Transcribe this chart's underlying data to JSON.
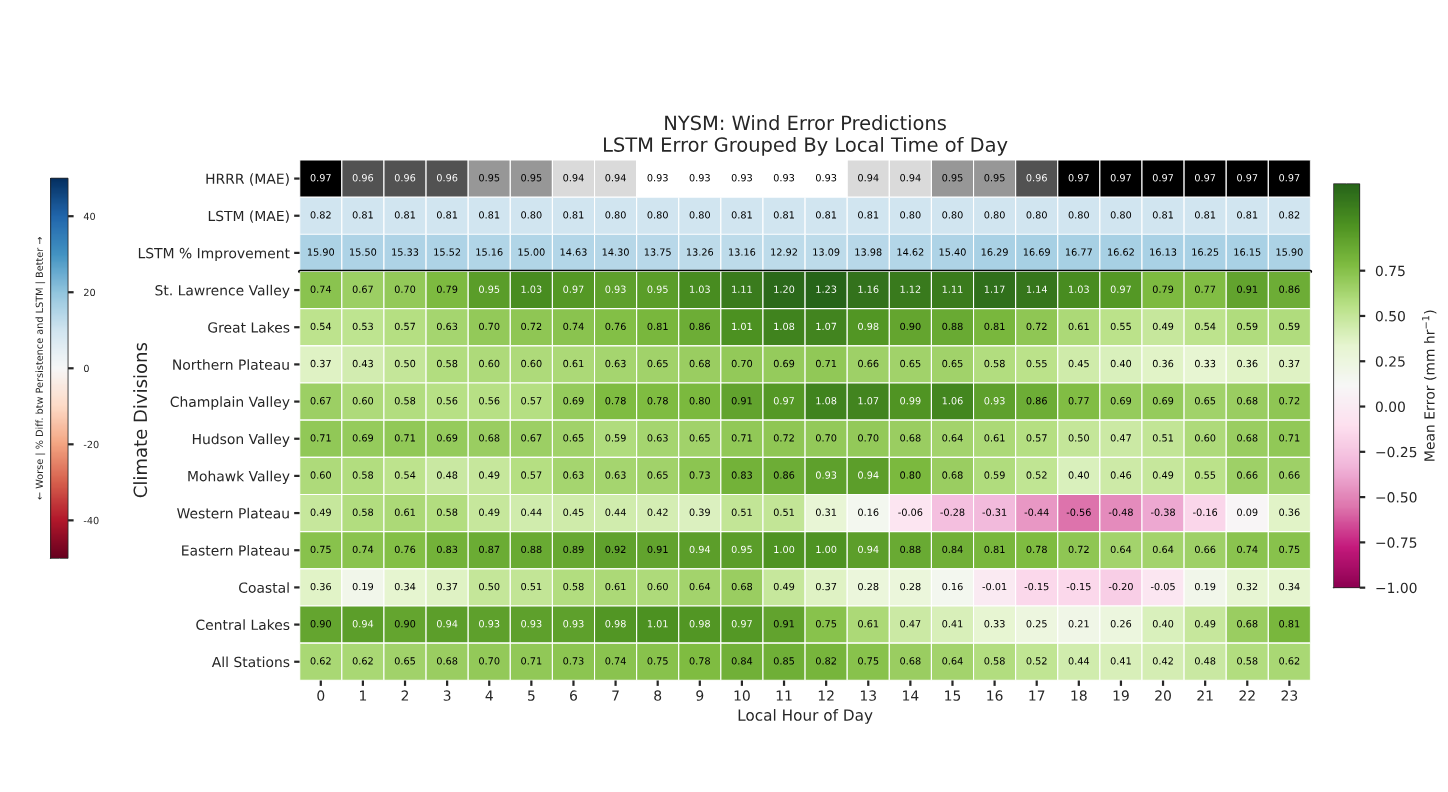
{
  "chart_data": [
    {
      "type": "heatmap",
      "title": "NYSM: Wind Error Predictions\nLSTM Error Grouped By Local Time of Day",
      "categories": [
        "0",
        "1",
        "2",
        "3",
        "4",
        "5",
        "6",
        "7",
        "8",
        "9",
        "10",
        "11",
        "12",
        "13",
        "14",
        "15",
        "16",
        "17",
        "18",
        "19",
        "20",
        "21",
        "22",
        "23"
      ],
      "y_categories": [
        "HRRR (MAE)"
      ],
      "cells": [
        [
          0.97,
          0.96,
          0.96,
          0.96,
          0.95,
          0.95,
          0.94,
          0.94,
          0.93,
          0.93,
          0.93,
          0.93,
          0.93,
          0.94,
          0.94,
          0.95,
          0.95,
          0.96,
          0.97,
          0.97,
          0.97,
          0.97,
          0.97,
          0.97
        ]
      ],
      "cell_labels": [
        [
          "0.97",
          "0.96",
          "0.96",
          "0.96",
          "0.95",
          "0.95",
          "0.94",
          "0.94",
          "0.93",
          "0.93",
          "0.93",
          "0.93",
          "0.93",
          "0.94",
          "0.94",
          "0.95",
          "0.95",
          "0.96",
          "0.97",
          "0.97",
          "0.97",
          "0.97",
          "0.97",
          "0.97"
        ]
      ],
      "tick_labels": "y"
    },
    {
      "type": "heatmap",
      "color": "#d1e5f0",
      "categories": [
        "0",
        "1",
        "2",
        "3",
        "4",
        "5",
        "6",
        "7",
        "8",
        "9",
        "10",
        "11",
        "12",
        "13",
        "14",
        "15",
        "16",
        "17",
        "18",
        "19",
        "20",
        "21",
        "22",
        "23"
      ],
      "y_categories": [
        "LSTM (MAE)"
      ],
      "cells": [
        [
          0.82,
          0.81,
          0.81,
          0.81,
          0.81,
          0.8,
          0.81,
          0.8,
          0.8,
          0.8,
          0.81,
          0.81,
          0.81,
          0.81,
          0.8,
          0.8,
          0.8,
          0.8,
          0.8,
          0.8,
          0.81,
          0.81,
          0.81,
          0.82
        ]
      ],
      "cell_labels": [
        [
          "0.82",
          "0.81",
          "0.81",
          "0.81",
          "0.81",
          "0.80",
          "0.81",
          "0.80",
          "0.80",
          "0.80",
          "0.81",
          "0.81",
          "0.81",
          "0.81",
          "0.80",
          "0.80",
          "0.80",
          "0.80",
          "0.80",
          "0.80",
          "0.81",
          "0.81",
          "0.81",
          "0.82"
        ]
      ],
      "tick_labels": "y"
    },
    {
      "type": "heatmap",
      "categories": [
        "0",
        "1",
        "2",
        "3",
        "4",
        "5",
        "6",
        "7",
        "8",
        "9",
        "10",
        "11",
        "12",
        "13",
        "14",
        "15",
        "16",
        "17",
        "18",
        "19",
        "20",
        "21",
        "22",
        "23"
      ],
      "y_categories": [
        "LSTM % Improvement"
      ],
      "cells": [
        [
          15.9,
          15.5,
          15.33,
          15.52,
          15.16,
          15.0,
          14.63,
          14.3,
          13.75,
          13.26,
          13.16,
          12.92,
          13.09,
          13.98,
          14.62,
          15.4,
          16.29,
          16.69,
          16.77,
          16.62,
          16.13,
          16.25,
          16.15,
          15.9
        ]
      ],
      "cell_labels": [
        [
          "15.90",
          "15.50",
          "15.33",
          "15.52",
          "15.16",
          "15.00",
          "14.63",
          "14.30",
          "13.75",
          "13.26",
          "13.16",
          "12.92",
          "13.09",
          "13.98",
          "14.62",
          "15.40",
          "16.29",
          "16.69",
          "16.77",
          "16.62",
          "16.13",
          "16.25",
          "16.15",
          "15.90"
        ]
      ],
      "clim": [
        -50,
        50
      ],
      "cticks": [
        -40,
        -20,
        0,
        20,
        40
      ],
      "clabel": "← Worse | % Diff. btw Persistence and LSTM | Better →",
      "tick_labels": "y"
    },
    {
      "type": "heatmap",
      "xlabel": "Local Hour of Day",
      "ylabel": "Climate Divisions",
      "categories": [
        "0",
        "1",
        "2",
        "3",
        "4",
        "5",
        "6",
        "7",
        "8",
        "9",
        "10",
        "11",
        "12",
        "13",
        "14",
        "15",
        "16",
        "17",
        "18",
        "19",
        "20",
        "21",
        "22",
        "23"
      ],
      "y_categories": [
        "St. Lawrence Valley",
        "Great Lakes",
        "Northern Plateau",
        "Champlain Valley",
        "Hudson Valley",
        "Mohawk Valley",
        "Western Plateau",
        "Eastern Plateau",
        "Coastal",
        "Central Lakes",
        "All Stations"
      ],
      "cells": [
        [
          0.74,
          0.67,
          0.7,
          0.79,
          0.95,
          1.03,
          0.97,
          0.93,
          0.95,
          1.03,
          1.11,
          1.2,
          1.23,
          1.16,
          1.12,
          1.11,
          1.17,
          1.14,
          1.03,
          0.97,
          0.79,
          0.77,
          0.91,
          0.86
        ],
        [
          0.54,
          0.53,
          0.57,
          0.63,
          0.7,
          0.72,
          0.74,
          0.76,
          0.81,
          0.86,
          1.01,
          1.08,
          1.07,
          0.98,
          0.9,
          0.88,
          0.81,
          0.72,
          0.61,
          0.55,
          0.49,
          0.54,
          0.59,
          0.59
        ],
        [
          0.37,
          0.43,
          0.5,
          0.58,
          0.6,
          0.6,
          0.61,
          0.63,
          0.65,
          0.68,
          0.7,
          0.69,
          0.71,
          0.66,
          0.65,
          0.65,
          0.58,
          0.55,
          0.45,
          0.4,
          0.36,
          0.33,
          0.36,
          0.37
        ],
        [
          0.67,
          0.6,
          0.58,
          0.56,
          0.56,
          0.57,
          0.69,
          0.78,
          0.78,
          0.8,
          0.91,
          0.97,
          1.08,
          1.07,
          0.99,
          1.06,
          0.93,
          0.86,
          0.77,
          0.69,
          0.69,
          0.65,
          0.68,
          0.72
        ],
        [
          0.71,
          0.69,
          0.71,
          0.69,
          0.68,
          0.67,
          0.65,
          0.59,
          0.63,
          0.65,
          0.71,
          0.72,
          0.7,
          0.7,
          0.68,
          0.64,
          0.61,
          0.57,
          0.5,
          0.47,
          0.51,
          0.6,
          0.68,
          0.71
        ],
        [
          0.6,
          0.58,
          0.54,
          0.48,
          0.49,
          0.57,
          0.63,
          0.63,
          0.65,
          0.73,
          0.83,
          0.86,
          0.93,
          0.94,
          0.8,
          0.68,
          0.59,
          0.52,
          0.4,
          0.46,
          0.49,
          0.55,
          0.66,
          0.66
        ],
        [
          0.49,
          0.58,
          0.61,
          0.58,
          0.49,
          0.44,
          0.45,
          0.44,
          0.42,
          0.39,
          0.51,
          0.51,
          0.31,
          0.16,
          -0.06,
          -0.28,
          -0.31,
          -0.44,
          -0.56,
          -0.48,
          -0.38,
          -0.16,
          0.09,
          0.36
        ],
        [
          0.75,
          0.74,
          0.76,
          0.83,
          0.87,
          0.88,
          0.89,
          0.92,
          0.91,
          0.94,
          0.95,
          1.0,
          1.0,
          0.94,
          0.88,
          0.84,
          0.81,
          0.78,
          0.72,
          0.64,
          0.64,
          0.66,
          0.74,
          0.75
        ],
        [
          0.36,
          0.19,
          0.34,
          0.37,
          0.5,
          0.51,
          0.58,
          0.61,
          0.6,
          0.64,
          0.68,
          0.49,
          0.37,
          0.28,
          0.28,
          0.16,
          -0.01,
          -0.15,
          -0.15,
          -0.2,
          -0.05,
          0.19,
          0.32,
          0.34
        ],
        [
          0.9,
          0.94,
          0.9,
          0.94,
          0.93,
          0.93,
          0.93,
          0.98,
          1.01,
          0.98,
          0.97,
          0.91,
          0.75,
          0.61,
          0.47,
          0.41,
          0.33,
          0.25,
          0.21,
          0.26,
          0.4,
          0.49,
          0.68,
          0.81
        ],
        [
          0.62,
          0.62,
          0.65,
          0.68,
          0.7,
          0.71,
          0.73,
          0.74,
          0.75,
          0.78,
          0.84,
          0.85,
          0.82,
          0.75,
          0.68,
          0.64,
          0.58,
          0.52,
          0.44,
          0.41,
          0.42,
          0.48,
          0.58,
          0.62
        ]
      ],
      "cell_labels": [
        [
          "0.74",
          "0.67",
          "0.70",
          "0.79",
          "0.95",
          "1.03",
          "0.97",
          "0.93",
          "0.95",
          "1.03",
          "1.11",
          "1.20",
          "1.23",
          "1.16",
          "1.12",
          "1.11",
          "1.17",
          "1.14",
          "1.03",
          "0.97",
          "0.79",
          "0.77",
          "0.91",
          "0.86"
        ],
        [
          "0.54",
          "0.53",
          "0.57",
          "0.63",
          "0.70",
          "0.72",
          "0.74",
          "0.76",
          "0.81",
          "0.86",
          "1.01",
          "1.08",
          "1.07",
          "0.98",
          "0.90",
          "0.88",
          "0.81",
          "0.72",
          "0.61",
          "0.55",
          "0.49",
          "0.54",
          "0.59",
          "0.59"
        ],
        [
          "0.37",
          "0.43",
          "0.50",
          "0.58",
          "0.60",
          "0.60",
          "0.61",
          "0.63",
          "0.65",
          "0.68",
          "0.70",
          "0.69",
          "0.71",
          "0.66",
          "0.65",
          "0.65",
          "0.58",
          "0.55",
          "0.45",
          "0.40",
          "0.36",
          "0.33",
          "0.36",
          "0.37"
        ],
        [
          "0.67",
          "0.60",
          "0.58",
          "0.56",
          "0.56",
          "0.57",
          "0.69",
          "0.78",
          "0.78",
          "0.80",
          "0.91",
          "0.97",
          "1.08",
          "1.07",
          "0.99",
          "1.06",
          "0.93",
          "0.86",
          "0.77",
          "0.69",
          "0.69",
          "0.65",
          "0.68",
          "0.72"
        ],
        [
          "0.71",
          "0.69",
          "0.71",
          "0.69",
          "0.68",
          "0.67",
          "0.65",
          "0.59",
          "0.63",
          "0.65",
          "0.71",
          "0.72",
          "0.70",
          "0.70",
          "0.68",
          "0.64",
          "0.61",
          "0.57",
          "0.50",
          "0.47",
          "0.51",
          "0.60",
          "0.68",
          "0.71"
        ],
        [
          "0.60",
          "0.58",
          "0.54",
          "0.48",
          "0.49",
          "0.57",
          "0.63",
          "0.63",
          "0.65",
          "0.73",
          "0.83",
          "0.86",
          "0.93",
          "0.94",
          "0.80",
          "0.68",
          "0.59",
          "0.52",
          "0.40",
          "0.46",
          "0.49",
          "0.55",
          "0.66",
          "0.66"
        ],
        [
          "0.49",
          "0.58",
          "0.61",
          "0.58",
          "0.49",
          "0.44",
          "0.45",
          "0.44",
          "0.42",
          "0.39",
          "0.51",
          "0.51",
          "0.31",
          "0.16",
          "-0.06",
          "-0.28",
          "-0.31",
          "-0.44",
          "-0.56",
          "-0.48",
          "-0.38",
          "-0.16",
          "0.09",
          "0.36"
        ],
        [
          "0.75",
          "0.74",
          "0.76",
          "0.83",
          "0.87",
          "0.88",
          "0.89",
          "0.92",
          "0.91",
          "0.94",
          "0.95",
          "1.00",
          "1.00",
          "0.94",
          "0.88",
          "0.84",
          "0.81",
          "0.78",
          "0.72",
          "0.64",
          "0.64",
          "0.66",
          "0.74",
          "0.75"
        ],
        [
          "0.36",
          "0.19",
          "0.34",
          "0.37",
          "0.50",
          "0.51",
          "0.58",
          "0.61",
          "0.60",
          "0.64",
          "0.68",
          "0.49",
          "0.37",
          "0.28",
          "0.28",
          "0.16",
          "-0.01",
          "-0.15",
          "-0.15",
          "-0.20",
          "-0.05",
          "0.19",
          "0.32",
          "0.34"
        ],
        [
          "0.90",
          "0.94",
          "0.90",
          "0.94",
          "0.93",
          "0.93",
          "0.93",
          "0.98",
          "1.01",
          "0.98",
          "0.97",
          "0.91",
          "0.75",
          "0.61",
          "0.47",
          "0.41",
          "0.33",
          "0.25",
          "0.21",
          "0.26",
          "0.40",
          "0.49",
          "0.68",
          "0.81"
        ],
        [
          "0.62",
          "0.62",
          "0.65",
          "0.68",
          "0.70",
          "0.71",
          "0.73",
          "0.74",
          "0.75",
          "0.78",
          "0.84",
          "0.85",
          "0.82",
          "0.75",
          "0.68",
          "0.64",
          "0.58",
          "0.52",
          "0.44",
          "0.41",
          "0.42",
          "0.48",
          "0.58",
          "0.62"
        ]
      ],
      "clim": [
        -1,
        1.23
      ],
      "cticks": [
        {
          "value": -1,
          "label": "−1.00"
        },
        {
          "value": -0.75,
          "label": "−0.75"
        },
        {
          "value": -0.5,
          "label": "−0.50"
        },
        {
          "value": -0.25,
          "label": "−0.25"
        },
        {
          "value": 0,
          "label": "0.00"
        },
        {
          "value": 0.25,
          "label": "0.25"
        },
        {
          "value": 0.5,
          "label": "0.50"
        },
        {
          "value": 0.75,
          "label": "0.75"
        }
      ],
      "clabel": "Mean Error (mm hr$^{−1}$)"
    }
  ]
}
